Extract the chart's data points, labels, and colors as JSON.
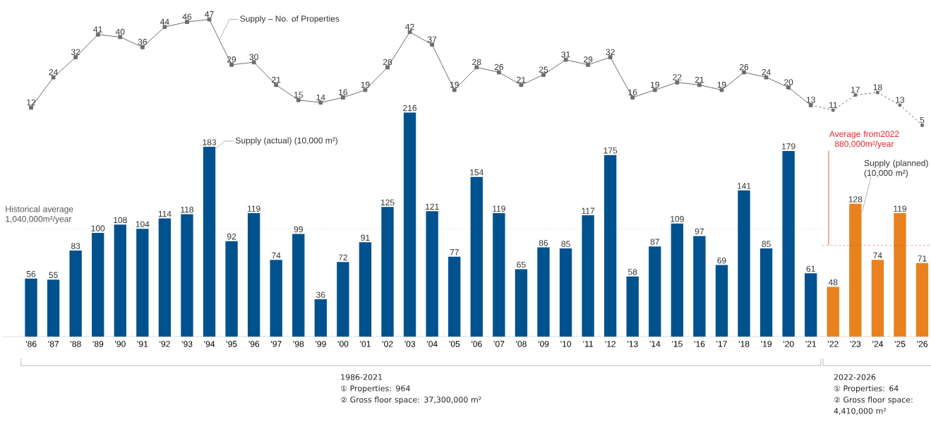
{
  "chart_data": [
    {
      "type": "line",
      "categories": [
        null,
        null,
        null,
        null,
        null,
        null,
        null,
        null,
        null,
        null,
        null,
        null,
        null,
        null,
        null,
        null,
        null,
        null,
        null,
        null,
        null,
        null,
        null,
        null,
        null,
        null,
        null,
        null,
        null,
        null,
        null,
        null,
        null,
        null,
        null,
        null,
        null,
        null,
        null,
        null,
        null
      ],
      "series": [
        {
          "name": "Supply – No. of Properties",
          "color": "#6d6d6d",
          "line_style": "solid",
          "values": [
            12,
            24,
            32,
            41,
            40,
            36,
            44,
            46,
            47,
            29,
            30,
            21,
            15,
            14,
            16,
            19,
            28,
            42,
            37,
            19,
            28,
            26,
            21,
            25,
            31,
            29,
            32,
            16,
            19,
            22,
            21,
            19,
            26,
            24,
            20,
            13,
            null,
            null,
            null,
            null,
            null
          ]
        },
        {
          "color": "#6d6d6d",
          "line_style": "dashed",
          "values": [
            null,
            null,
            null,
            null,
            null,
            null,
            null,
            null,
            null,
            null,
            null,
            null,
            null,
            null,
            null,
            null,
            null,
            null,
            null,
            null,
            null,
            null,
            null,
            null,
            null,
            null,
            null,
            null,
            null,
            null,
            null,
            null,
            null,
            null,
            null,
            13,
            11,
            17,
            18,
            13,
            5
          ],
          "value_labels": [
            null,
            null,
            null,
            null,
            null,
            null,
            null,
            null,
            null,
            null,
            null,
            null,
            null,
            null,
            null,
            null,
            null,
            null,
            null,
            null,
            null,
            null,
            null,
            null,
            null,
            null,
            null,
            null,
            null,
            null,
            null,
            null,
            null,
            null,
            null,
            null,
            "11",
            "17",
            "18",
            "13",
            "5"
          ]
        }
      ],
      "tick_labels": false,
      "data_labels": true,
      "legend": false,
      "grid": false,
      "marker": "square"
    },
    {
      "type": "bar",
      "categories": [
        "’86",
        "’87",
        "’88",
        "’89",
        "’90",
        "’91",
        "’92",
        "’93",
        "’94",
        "’95",
        "’96",
        "’97",
        "’98",
        "’99",
        "’00",
        "’01",
        "’02",
        "’03",
        "’04",
        "’05",
        "’06",
        "’07",
        "’08",
        "’09",
        "’10",
        "’11",
        "’12",
        "’13",
        "’14",
        "’15",
        "’16",
        "’17",
        "’18",
        "’19",
        "’20",
        "’21",
        "’22",
        "’23",
        "’24",
        "’25",
        "’26"
      ],
      "series": [
        {
          "name": "Supply (actual) (10,000 m²)",
          "type": "bar",
          "color": "#00528f",
          "values": [
            56,
            55,
            83,
            100,
            108,
            104,
            114,
            118,
            183,
            92,
            119,
            74,
            99,
            36,
            72,
            91,
            125,
            216,
            121,
            77,
            154,
            119,
            65,
            86,
            85,
            117,
            175,
            58,
            87,
            109,
            97,
            69,
            141,
            85,
            179,
            61,
            null,
            null,
            null,
            null,
            null
          ]
        },
        {
          "name": "Supply (planned) (10,000 m²)",
          "type": "bar",
          "color": "#e8821e",
          "values": [
            null,
            null,
            null,
            null,
            null,
            null,
            null,
            null,
            null,
            null,
            null,
            null,
            null,
            null,
            null,
            null,
            null,
            null,
            null,
            null,
            null,
            null,
            null,
            null,
            null,
            null,
            null,
            null,
            null,
            null,
            null,
            null,
            null,
            null,
            null,
            null,
            48,
            128,
            74,
            119,
            71
          ]
        }
      ],
      "tick_labels": "x",
      "data_labels": true,
      "legend": false,
      "grid": false,
      "ref_lines": [
        {
          "axis": "y",
          "value": 104,
          "label": "Historical average 1,040,000m²/year",
          "color": "#555555",
          "line_style": "dotted"
        },
        {
          "axis": "y",
          "value": 88,
          "label": "Average from2022 880,000m²/year",
          "color": "#e8232a",
          "line_style": "dashed"
        }
      ],
      "annotations": [
        "1986-2021",
        "① Properties: 964",
        "② Gross floor space: 37,300,000 m²",
        "2022-2026",
        "① Properties: 64",
        "② Gross floor space: 4,410,000 m²"
      ]
    }
  ]
}
